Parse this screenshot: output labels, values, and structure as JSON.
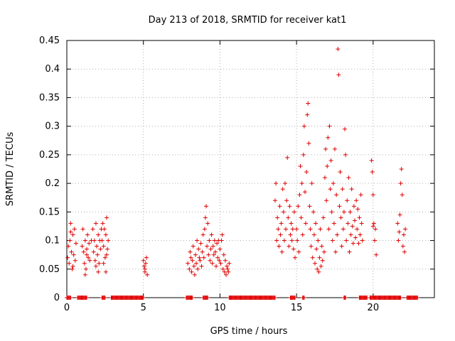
{
  "chart_data": {
    "type": "scatter",
    "title": "Day 213 of 2018, SRMTID for receiver kat1",
    "xlabel": "GPS time / hours",
    "ylabel": "SRMTID / TECUs",
    "xlim": [
      0,
      24
    ],
    "ylim": [
      0,
      0.45
    ],
    "xticks": [
      0,
      5,
      10,
      15,
      20
    ],
    "yticks": [
      0,
      0.05,
      0.1,
      0.15,
      0.2,
      0.25,
      0.3,
      0.35,
      0.4,
      0.45
    ],
    "xtick_labels": [
      "0",
      "5",
      "10",
      "15",
      "20"
    ],
    "ytick_labels": [
      "0",
      "0.05",
      "0.1",
      "0.15",
      "0.2",
      "0.25",
      "0.3",
      "0.35",
      "0.4",
      "0.45"
    ],
    "grid": true,
    "marker": "+",
    "color": "#e00000",
    "series": [
      {
        "name": "SRMTID",
        "points": [
          [
            0.05,
            0.07
          ],
          [
            0.1,
            0.09
          ],
          [
            0.15,
            0.06
          ],
          [
            0.2,
            0.1
          ],
          [
            0.25,
            0.13
          ],
          [
            0.3,
            0.08
          ],
          [
            0.35,
            0.05
          ],
          [
            0.4,
            0.11
          ],
          [
            0.45,
            0.075
          ],
          [
            0.5,
            0.12
          ],
          [
            0.55,
            0.065
          ],
          [
            0.6,
            0.095
          ],
          [
            0.25,
            0.115
          ],
          [
            0.4,
            0.055
          ],
          [
            1.0,
            0.09
          ],
          [
            1.05,
            0.12
          ],
          [
            1.1,
            0.08
          ],
          [
            1.15,
            0.06
          ],
          [
            1.2,
            0.1
          ],
          [
            1.25,
            0.05
          ],
          [
            1.3,
            0.085
          ],
          [
            1.35,
            0.11
          ],
          [
            1.4,
            0.07
          ],
          [
            1.45,
            0.095
          ],
          [
            1.5,
            0.065
          ],
          [
            1.2,
            0.04
          ],
          [
            1.3,
            0.075
          ],
          [
            1.6,
            0.1
          ],
          [
            1.7,
            0.12
          ],
          [
            1.75,
            0.08
          ],
          [
            1.8,
            0.1
          ],
          [
            1.85,
            0.065
          ],
          [
            1.9,
            0.13
          ],
          [
            1.95,
            0.09
          ],
          [
            2.0,
            0.075
          ],
          [
            2.05,
            0.11
          ],
          [
            2.1,
            0.06
          ],
          [
            2.15,
            0.1
          ],
          [
            2.2,
            0.085
          ],
          [
            2.25,
            0.12
          ],
          [
            1.9,
            0.055
          ],
          [
            2.05,
            0.045
          ],
          [
            2.3,
            0.1
          ],
          [
            2.35,
            0.13
          ],
          [
            2.4,
            0.09
          ],
          [
            2.45,
            0.12
          ],
          [
            2.5,
            0.07
          ],
          [
            2.55,
            0.11
          ],
          [
            2.6,
            0.14
          ],
          [
            2.65,
            0.085
          ],
          [
            2.7,
            0.1
          ],
          [
            2.4,
            0.06
          ],
          [
            2.55,
            0.045
          ],
          [
            2.6,
            0.075
          ],
          [
            5.0,
            0.065
          ],
          [
            5.05,
            0.055
          ],
          [
            5.1,
            0.05
          ],
          [
            5.15,
            0.06
          ],
          [
            5.2,
            0.07
          ],
          [
            5.25,
            0.04
          ],
          [
            5.1,
            0.045
          ],
          [
            7.9,
            0.06
          ],
          [
            8.0,
            0.05
          ],
          [
            8.05,
            0.08
          ],
          [
            8.1,
            0.07
          ],
          [
            8.15,
            0.045
          ],
          [
            8.2,
            0.065
          ],
          [
            8.25,
            0.09
          ],
          [
            8.3,
            0.055
          ],
          [
            8.35,
            0.04
          ],
          [
            8.4,
            0.075
          ],
          [
            8.45,
            0.06
          ],
          [
            8.5,
            0.1
          ],
          [
            8.55,
            0.05
          ],
          [
            8.6,
            0.085
          ],
          [
            8.65,
            0.07
          ],
          [
            8.7,
            0.065
          ],
          [
            8.75,
            0.095
          ],
          [
            8.8,
            0.055
          ],
          [
            8.85,
            0.08
          ],
          [
            8.9,
            0.11
          ],
          [
            8.95,
            0.07
          ],
          [
            9.0,
            0.12
          ],
          [
            9.05,
            0.14
          ],
          [
            9.1,
            0.16
          ],
          [
            9.15,
            0.09
          ],
          [
            9.2,
            0.13
          ],
          [
            9.25,
            0.075
          ],
          [
            9.3,
            0.1
          ],
          [
            9.35,
            0.065
          ],
          [
            9.4,
            0.085
          ],
          [
            9.45,
            0.11
          ],
          [
            9.5,
            0.06
          ],
          [
            9.55,
            0.09
          ],
          [
            9.6,
            0.075
          ],
          [
            9.65,
            0.1
          ],
          [
            9.7,
            0.08
          ],
          [
            9.75,
            0.055
          ],
          [
            9.8,
            0.095
          ],
          [
            9.85,
            0.07
          ],
          [
            9.9,
            0.1
          ],
          [
            9.95,
            0.065
          ],
          [
            10.0,
            0.085
          ],
          [
            10.05,
            0.06
          ],
          [
            10.1,
            0.1
          ],
          [
            10.15,
            0.11
          ],
          [
            10.2,
            0.05
          ],
          [
            10.25,
            0.075
          ],
          [
            10.3,
            0.045
          ],
          [
            10.35,
            0.065
          ],
          [
            10.4,
            0.04
          ],
          [
            10.45,
            0.055
          ],
          [
            10.5,
            0.05
          ],
          [
            10.55,
            0.045
          ],
          [
            10.6,
            0.06
          ],
          [
            13.6,
            0.17
          ],
          [
            13.65,
            0.2
          ],
          [
            13.7,
            0.1
          ],
          [
            13.75,
            0.14
          ],
          [
            13.8,
            0.12
          ],
          [
            13.85,
            0.09
          ],
          [
            13.9,
            0.16
          ],
          [
            13.95,
            0.11
          ],
          [
            14.0,
            0.13
          ],
          [
            14.05,
            0.08
          ],
          [
            14.1,
            0.19
          ],
          [
            14.15,
            0.15
          ],
          [
            14.2,
            0.1
          ],
          [
            14.25,
            0.2
          ],
          [
            14.3,
            0.12
          ],
          [
            14.35,
            0.17
          ],
          [
            14.4,
            0.245
          ],
          [
            14.45,
            0.14
          ],
          [
            14.5,
            0.09
          ],
          [
            14.55,
            0.16
          ],
          [
            14.6,
            0.11
          ],
          [
            14.65,
            0.13
          ],
          [
            14.7,
            0.1
          ],
          [
            14.75,
            0.12
          ],
          [
            14.8,
            0.085
          ],
          [
            14.85,
            0.15
          ],
          [
            14.9,
            0.07
          ],
          [
            15.0,
            0.12
          ],
          [
            15.05,
            0.1
          ],
          [
            15.1,
            0.16
          ],
          [
            15.15,
            0.08
          ],
          [
            15.2,
            0.18
          ],
          [
            15.25,
            0.23
          ],
          [
            15.3,
            0.14
          ],
          [
            15.35,
            0.2
          ],
          [
            15.4,
            0.11
          ],
          [
            15.45,
            0.25
          ],
          [
            15.5,
            0.3
          ],
          [
            15.55,
            0.185
          ],
          [
            15.6,
            0.13
          ],
          [
            15.65,
            0.22
          ],
          [
            15.7,
            0.32
          ],
          [
            15.75,
            0.34
          ],
          [
            15.8,
            0.27
          ],
          [
            15.85,
            0.16
          ],
          [
            15.9,
            0.12
          ],
          [
            15.95,
            0.09
          ],
          [
            16.0,
            0.2
          ],
          [
            16.05,
            0.07
          ],
          [
            16.1,
            0.15
          ],
          [
            16.15,
            0.11
          ],
          [
            16.2,
            0.06
          ],
          [
            16.25,
            0.13
          ],
          [
            16.3,
            0.085
          ],
          [
            16.35,
            0.05
          ],
          [
            16.4,
            0.1
          ],
          [
            16.45,
            0.045
          ],
          [
            16.5,
            0.07
          ],
          [
            16.55,
            0.12
          ],
          [
            16.6,
            0.055
          ],
          [
            16.65,
            0.09
          ],
          [
            16.7,
            0.065
          ],
          [
            16.75,
            0.14
          ],
          [
            16.8,
            0.08
          ],
          [
            16.85,
            0.21
          ],
          [
            16.9,
            0.26
          ],
          [
            16.95,
            0.17
          ],
          [
            17.0,
            0.23
          ],
          [
            17.05,
            0.28
          ],
          [
            17.1,
            0.12
          ],
          [
            17.15,
            0.3
          ],
          [
            17.2,
            0.19
          ],
          [
            17.25,
            0.24
          ],
          [
            17.3,
            0.15
          ],
          [
            17.35,
            0.1
          ],
          [
            17.4,
            0.2
          ],
          [
            17.45,
            0.13
          ],
          [
            17.5,
            0.26
          ],
          [
            17.55,
            0.08
          ],
          [
            17.6,
            0.18
          ],
          [
            17.65,
            0.11
          ],
          [
            17.7,
            0.435
          ],
          [
            17.75,
            0.39
          ],
          [
            17.8,
            0.16
          ],
          [
            17.85,
            0.22
          ],
          [
            17.9,
            0.14
          ],
          [
            17.95,
            0.09
          ],
          [
            18.0,
            0.19
          ],
          [
            18.05,
            0.12
          ],
          [
            18.1,
            0.15
          ],
          [
            18.15,
            0.295
          ],
          [
            18.2,
            0.25
          ],
          [
            18.25,
            0.1
          ],
          [
            18.3,
            0.17
          ],
          [
            18.35,
            0.13
          ],
          [
            18.4,
            0.21
          ],
          [
            18.45,
            0.08
          ],
          [
            18.5,
            0.15
          ],
          [
            18.55,
            0.11
          ],
          [
            18.6,
            0.19
          ],
          [
            18.65,
            0.125
          ],
          [
            18.7,
            0.095
          ],
          [
            18.75,
            0.16
          ],
          [
            18.8,
            0.135
          ],
          [
            18.85,
            0.105
          ],
          [
            18.9,
            0.17
          ],
          [
            18.95,
            0.12
          ],
          [
            19.0,
            0.155
          ],
          [
            19.05,
            0.095
          ],
          [
            19.1,
            0.14
          ],
          [
            19.15,
            0.11
          ],
          [
            19.2,
            0.18
          ],
          [
            19.25,
            0.13
          ],
          [
            19.3,
            0.1
          ],
          [
            19.9,
            0.24
          ],
          [
            19.95,
            0.22
          ],
          [
            20.0,
            0.18
          ],
          [
            20.05,
            0.13
          ],
          [
            20.1,
            0.1
          ],
          [
            20.15,
            0.12
          ],
          [
            20.2,
            0.075
          ],
          [
            20.0,
            0.125
          ],
          [
            21.6,
            0.13
          ],
          [
            21.65,
            0.1
          ],
          [
            21.7,
            0.115
          ],
          [
            21.75,
            0.145
          ],
          [
            21.8,
            0.2
          ],
          [
            21.85,
            0.225
          ],
          [
            21.9,
            0.18
          ],
          [
            21.95,
            0.09
          ],
          [
            22.0,
            0.11
          ],
          [
            22.05,
            0.08
          ],
          [
            22.1,
            0.12
          ]
        ]
      }
    ],
    "zero_band_segments": [
      [
        0.0,
        0.25
      ],
      [
        0.7,
        1.3
      ],
      [
        2.3,
        2.5
      ],
      [
        2.9,
        5.0
      ],
      [
        7.8,
        8.2
      ],
      [
        8.9,
        9.2
      ],
      [
        10.6,
        13.6
      ],
      [
        14.6,
        14.9
      ],
      [
        15.4,
        15.5
      ],
      [
        18.1,
        18.2
      ],
      [
        19.1,
        19.6
      ],
      [
        19.8,
        21.8
      ],
      [
        22.2,
        22.9
      ]
    ]
  }
}
